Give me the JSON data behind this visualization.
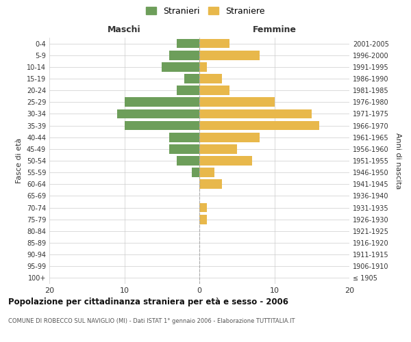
{
  "age_groups": [
    "100+",
    "95-99",
    "90-94",
    "85-89",
    "80-84",
    "75-79",
    "70-74",
    "65-69",
    "60-64",
    "55-59",
    "50-54",
    "45-49",
    "40-44",
    "35-39",
    "30-34",
    "25-29",
    "20-24",
    "15-19",
    "10-14",
    "5-9",
    "0-4"
  ],
  "birth_years": [
    "≤ 1905",
    "1906-1910",
    "1911-1915",
    "1916-1920",
    "1921-1925",
    "1926-1930",
    "1931-1935",
    "1936-1940",
    "1941-1945",
    "1946-1950",
    "1951-1955",
    "1956-1960",
    "1961-1965",
    "1966-1970",
    "1971-1975",
    "1976-1980",
    "1981-1985",
    "1986-1990",
    "1991-1995",
    "1996-2000",
    "2001-2005"
  ],
  "males": [
    0,
    0,
    0,
    0,
    0,
    0,
    0,
    0,
    0,
    1,
    3,
    4,
    4,
    10,
    11,
    10,
    3,
    2,
    5,
    4,
    3
  ],
  "females": [
    0,
    0,
    0,
    0,
    0,
    1,
    1,
    0,
    3,
    2,
    7,
    5,
    8,
    16,
    15,
    10,
    4,
    3,
    1,
    8,
    4
  ],
  "male_color": "#6d9e5a",
  "female_color": "#e8b84b",
  "background_color": "#ffffff",
  "grid_color": "#cccccc",
  "title": "Popolazione per cittadinanza straniera per età e sesso - 2006",
  "subtitle": "COMUNE DI ROBECCO SUL NAVIGLIO (MI) - Dati ISTAT 1° gennaio 2006 - Elaborazione TUTTITALIA.IT",
  "ylabel_left": "Fasce di età",
  "ylabel_right": "Anni di nascita",
  "header_left": "Maschi",
  "header_right": "Femmine",
  "legend_male": "Stranieri",
  "legend_female": "Straniere",
  "xlim": 20,
  "bar_height": 0.8
}
